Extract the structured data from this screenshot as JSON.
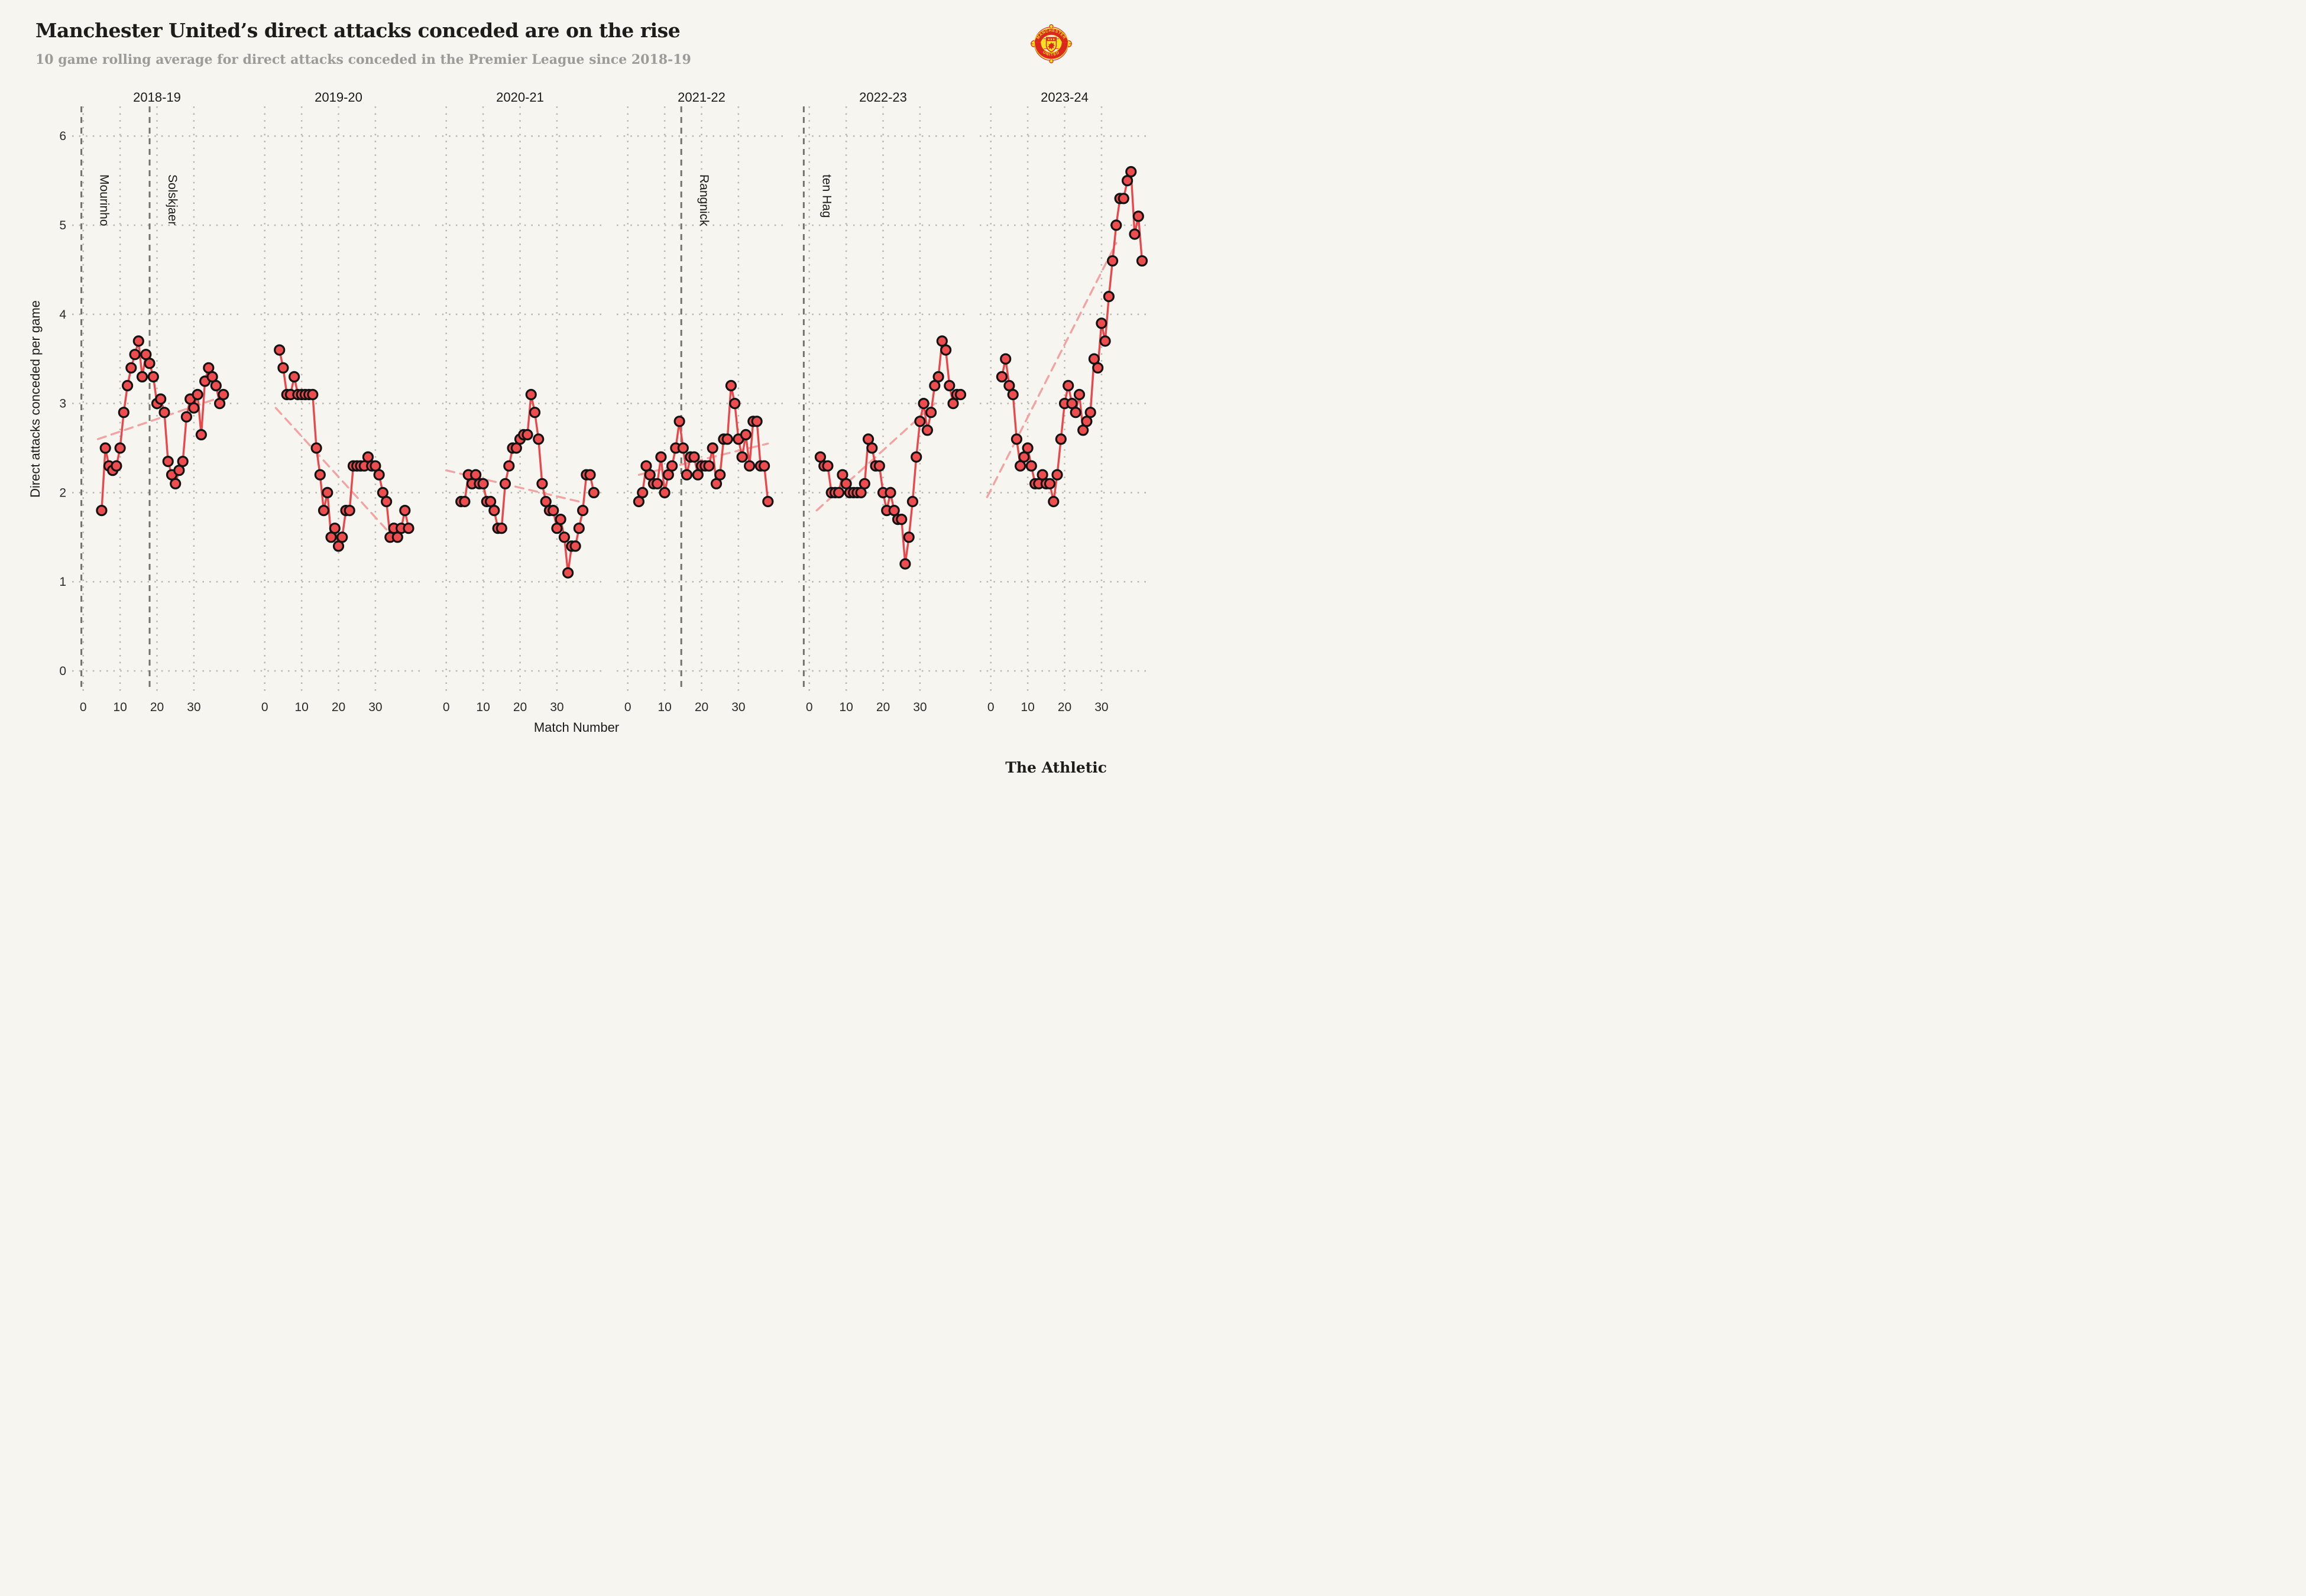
{
  "header": {
    "title": "Manchester United’s direct attacks conceded are on the rise",
    "subtitle": "10 game rolling average for direct attacks conceded in the Premier League since 2018-19"
  },
  "crest": {
    "top_text": "MANCHESTER",
    "bottom_text": "UNITED"
  },
  "footer": {
    "brand": "The Athletic"
  },
  "colors": {
    "background": "#f6f5ef",
    "title_text": "#1c1c1a",
    "subtitle_text": "#9b9b97",
    "line": "#e8474b",
    "point_fill": "#ee4d4f",
    "point_stroke": "#131313",
    "trend": "#f2a3a3",
    "manager_line": "#73736e",
    "grid": "#b9b9b3",
    "tick_text": "#2a2a28",
    "crest_red": "#da291c",
    "crest_yellow": "#fbe122"
  },
  "chart_data": {
    "type": "line",
    "xlabel": "Match Number",
    "ylabel": "Direct attacks conceded per game",
    "ylim": [
      0,
      6
    ],
    "y_ticks": [
      0,
      1,
      2,
      3,
      4,
      5,
      6
    ],
    "x_ticks": [
      0,
      10,
      20,
      30
    ],
    "grid": "dotted",
    "facets": [
      {
        "season": "2018-19",
        "managers": [
          {
            "name": "Mourinho",
            "x": -0.5
          },
          {
            "name": "Solskjaer",
            "x": 18
          }
        ],
        "trend": {
          "x": [
            4,
            38
          ],
          "y": [
            2.6,
            3.08
          ]
        },
        "x": [
          5,
          6,
          7,
          8,
          9,
          10,
          11,
          12,
          13,
          14,
          15,
          16,
          17,
          18,
          19,
          20,
          21,
          22,
          23,
          24,
          25,
          26,
          27,
          28,
          29,
          30,
          31,
          32,
          33,
          34,
          35,
          36,
          37,
          38
        ],
        "y": [
          1.8,
          2.5,
          2.3,
          2.25,
          2.3,
          2.5,
          2.9,
          3.2,
          3.4,
          3.55,
          3.7,
          3.3,
          3.55,
          3.45,
          3.3,
          3.0,
          3.05,
          2.9,
          2.35,
          2.2,
          2.1,
          2.25,
          2.35,
          2.85,
          3.05,
          2.95,
          3.1,
          2.65,
          3.25,
          3.4,
          3.3,
          3.2,
          3.0,
          3.1
        ]
      },
      {
        "season": "2019-20",
        "managers": [],
        "trend": {
          "x": [
            3,
            36
          ],
          "y": [
            2.95,
            1.45
          ]
        },
        "x": [
          4,
          5,
          6,
          7,
          8,
          9,
          10,
          11,
          12,
          13,
          14,
          15,
          16,
          17,
          18,
          19,
          20,
          21,
          22,
          23,
          24,
          25,
          26,
          27,
          28,
          29,
          30,
          31,
          32,
          33,
          34,
          35,
          36,
          37,
          38,
          39
        ],
        "y": [
          3.6,
          3.4,
          3.1,
          3.1,
          3.3,
          3.1,
          3.1,
          3.1,
          3.1,
          3.1,
          2.5,
          2.2,
          1.8,
          2.0,
          1.5,
          1.6,
          1.4,
          1.5,
          1.8,
          1.8,
          2.3,
          2.3,
          2.3,
          2.3,
          2.4,
          2.3,
          2.3,
          2.2,
          2.0,
          1.9,
          1.5,
          1.6,
          1.5,
          1.6,
          1.8,
          1.6
        ]
      },
      {
        "season": "2020-21",
        "managers": [],
        "trend": {
          "x": [
            0,
            36
          ],
          "y": [
            2.25,
            1.9
          ]
        },
        "x": [
          4,
          5,
          6,
          7,
          8,
          9,
          10,
          11,
          12,
          13,
          14,
          15,
          16,
          17,
          18,
          19,
          20,
          21,
          22,
          23,
          24,
          25,
          26,
          27,
          28,
          29,
          30,
          31,
          32,
          33,
          34,
          35,
          36,
          37,
          38,
          39,
          40
        ],
        "y": [
          1.9,
          1.9,
          2.2,
          2.1,
          2.2,
          2.1,
          2.1,
          1.9,
          1.9,
          1.8,
          1.6,
          1.6,
          2.1,
          2.3,
          2.5,
          2.5,
          2.6,
          2.65,
          2.65,
          3.1,
          2.9,
          2.6,
          2.1,
          1.9,
          1.8,
          1.8,
          1.6,
          1.7,
          1.5,
          1.1,
          1.4,
          1.4,
          1.6,
          1.8,
          2.2,
          2.2,
          2.0
        ]
      },
      {
        "season": "2021-22",
        "managers": [
          {
            "name": "Rangnick",
            "x": 14.5
          }
        ],
        "trend": {
          "x": [
            3,
            38
          ],
          "y": [
            2.2,
            2.55
          ]
        },
        "x": [
          3,
          4,
          5,
          6,
          7,
          8,
          9,
          10,
          11,
          12,
          13,
          14,
          15,
          16,
          17,
          18,
          19,
          20,
          21,
          22,
          23,
          24,
          25,
          26,
          27,
          28,
          29,
          30,
          31,
          32,
          33,
          34,
          35,
          36,
          37,
          38
        ],
        "y": [
          1.9,
          2.0,
          2.3,
          2.2,
          2.1,
          2.1,
          2.4,
          2.0,
          2.2,
          2.3,
          2.5,
          2.8,
          2.5,
          2.2,
          2.4,
          2.4,
          2.2,
          2.3,
          2.3,
          2.3,
          2.5,
          2.1,
          2.2,
          2.6,
          2.6,
          3.2,
          3.0,
          2.6,
          2.4,
          2.65,
          2.3,
          2.8,
          2.8,
          2.3,
          2.3,
          1.9
        ]
      },
      {
        "season": "2022-23",
        "managers": [
          {
            "name": "ten Hag",
            "x": -1.5
          }
        ],
        "trend": {
          "x": [
            2,
            34
          ],
          "y": [
            1.8,
            3.0
          ]
        },
        "x": [
          3,
          4,
          5,
          6,
          7,
          8,
          9,
          10,
          11,
          12,
          13,
          14,
          15,
          16,
          17,
          18,
          19,
          20,
          21,
          22,
          23,
          24,
          25,
          26,
          27,
          28,
          29,
          30,
          31,
          32,
          33,
          34,
          35,
          36,
          37,
          38,
          39,
          40,
          41
        ],
        "y": [
          2.4,
          2.3,
          2.3,
          2.0,
          2.0,
          2.0,
          2.2,
          2.1,
          2.0,
          2.0,
          2.0,
          2.0,
          2.1,
          2.6,
          2.5,
          2.3,
          2.3,
          2.0,
          1.8,
          2.0,
          1.8,
          1.7,
          1.7,
          1.2,
          1.5,
          1.9,
          2.4,
          2.8,
          3.0,
          2.7,
          2.9,
          3.2,
          3.3,
          3.7,
          3.6,
          3.2,
          3.0,
          3.1,
          3.1
        ]
      },
      {
        "season": "2023-24",
        "managers": [],
        "trend": {
          "x": [
            -1,
            34
          ],
          "y": [
            1.95,
            4.8
          ]
        },
        "x": [
          3,
          4,
          5,
          6,
          7,
          8,
          9,
          10,
          11,
          12,
          13,
          14,
          15,
          16,
          17,
          18,
          19,
          20,
          21,
          22,
          23,
          24,
          25,
          26,
          27,
          28,
          29,
          30,
          31,
          32,
          33,
          34,
          35,
          36,
          37,
          38,
          39,
          40,
          41
        ],
        "y": [
          3.3,
          3.5,
          3.2,
          3.1,
          2.6,
          2.3,
          2.4,
          2.5,
          2.3,
          2.1,
          2.1,
          2.2,
          2.1,
          2.1,
          1.9,
          2.2,
          2.6,
          3.0,
          3.2,
          3.0,
          2.9,
          3.1,
          2.7,
          2.8,
          2.9,
          3.5,
          3.4,
          3.9,
          3.7,
          4.2,
          4.6,
          5.0,
          5.3,
          5.3,
          5.5,
          5.6,
          4.9,
          5.1,
          4.6
        ]
      }
    ]
  }
}
